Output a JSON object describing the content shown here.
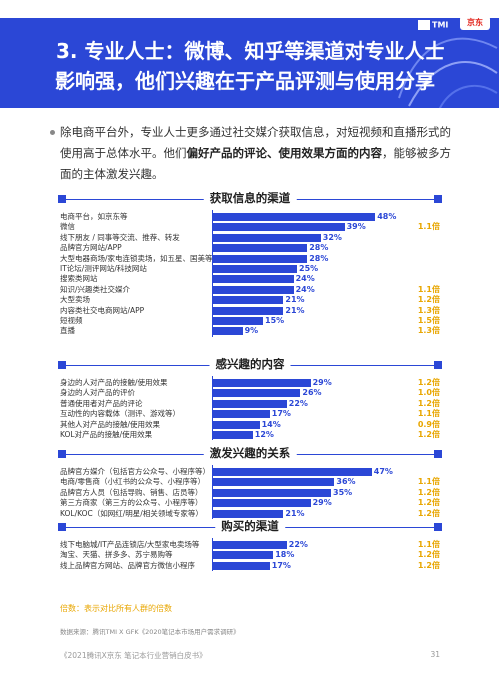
{
  "header": {
    "title_line1": "3. 专业人士：微博、知乎等渠道对专业人士",
    "title_line2": "影响强，他们兴趣在于产品评测与使用分享",
    "logo_tmi": "TMI",
    "logo_jd": "京东"
  },
  "intro": {
    "text_plain": "除电商平台外，专业人士更多通过社交媒介获取信息，对短视频和直播形式的使用高于总体水平。他们",
    "text_bold": "偏好产品的评论、使用效果方面的内容",
    "text_tail": "，能够被多方面的主体激发兴趣。"
  },
  "chart_data": [
    {
      "type": "bar",
      "title": "获取信息的渠道",
      "categories": [
        "电商平台，如京东等",
        "微信",
        "线下朋友 / 同事等交流、推荐、转发",
        "品牌官方网站/APP",
        "大型电器商场/家电连锁卖场，如五星、国美等",
        "IT论坛/测评网站/科技网站",
        "搜索类网站",
        "知识/兴趣类社交媒介",
        "大型卖场",
        "内容类社交电商网站/APP",
        "短视频",
        "直播"
      ],
      "values": [
        48,
        39,
        32,
        28,
        28,
        25,
        24,
        24,
        21,
        21,
        15,
        9
      ],
      "value_labels": [
        "48%",
        "39%",
        "32%",
        "28%",
        "28%",
        "25%",
        "24%",
        "24%",
        "21%",
        "21%",
        "15%",
        "9%"
      ],
      "multipliers": [
        "",
        "1.1倍",
        "",
        "",
        "",
        "",
        "",
        "1.1倍",
        "1.2倍",
        "1.3倍",
        "1.5倍",
        "1.3倍"
      ]
    },
    {
      "type": "bar",
      "title": "感兴趣的内容",
      "categories": [
        "身边的人对产品的接触/使用效果",
        "身边的人对产品的评价",
        "普通使用者对产品的评论",
        "互动性的内容载体（测评、游戏等）",
        "其他人对产品的接触/使用效果",
        "KOL对产品的接触/使用效果"
      ],
      "values": [
        29,
        26,
        22,
        17,
        14,
        12
      ],
      "value_labels": [
        "29%",
        "26%",
        "22%",
        "17%",
        "14%",
        "12%"
      ],
      "multipliers": [
        "1.2倍",
        "1.0倍",
        "1.2倍",
        "1.1倍",
        "0.9倍",
        "1.2倍"
      ]
    },
    {
      "type": "bar",
      "title": "激发兴趣的关系",
      "categories": [
        "品牌官方媒介（包括官方公众号、小程序等）",
        "电商/零售商（小红书的公众号、小程序等）",
        "品牌官方人员（包括导购、销售、店员等）",
        "第三方商家（第三方的公众号、小程序等）",
        "KOL/KOC（如网红/明星/相关领域专家等）"
      ],
      "values": [
        47,
        36,
        35,
        29,
        21
      ],
      "value_labels": [
        "47%",
        "36%",
        "35%",
        "29%",
        "21%"
      ],
      "multipliers": [
        "",
        "1.1倍",
        "1.2倍",
        "1.2倍",
        "1.2倍"
      ]
    },
    {
      "type": "bar",
      "title": "购买的渠道",
      "categories": [
        "线下电脑城/IT产品连锁店/大型家电卖场等",
        "淘宝、天猫、拼多多、苏宁易购等",
        "线上品牌官方网站、品牌官方微信小程序"
      ],
      "values": [
        22,
        18,
        17
      ],
      "value_labels": [
        "22%",
        "18%",
        "17%"
      ],
      "multipliers": [
        "1.1倍",
        "1.2倍",
        "1.2倍"
      ]
    }
  ],
  "note": "倍数：表示对比所有人群的倍数",
  "source": "数据来源：腾讯TMI X GFK《2020笔记本市场用户需求调研》",
  "footer": {
    "title": "《2021腾讯X京东 笔记本行业营销白皮书》",
    "page": "31"
  },
  "colors": {
    "accent": "#2b47d6",
    "multiplier": "#e8a600"
  }
}
